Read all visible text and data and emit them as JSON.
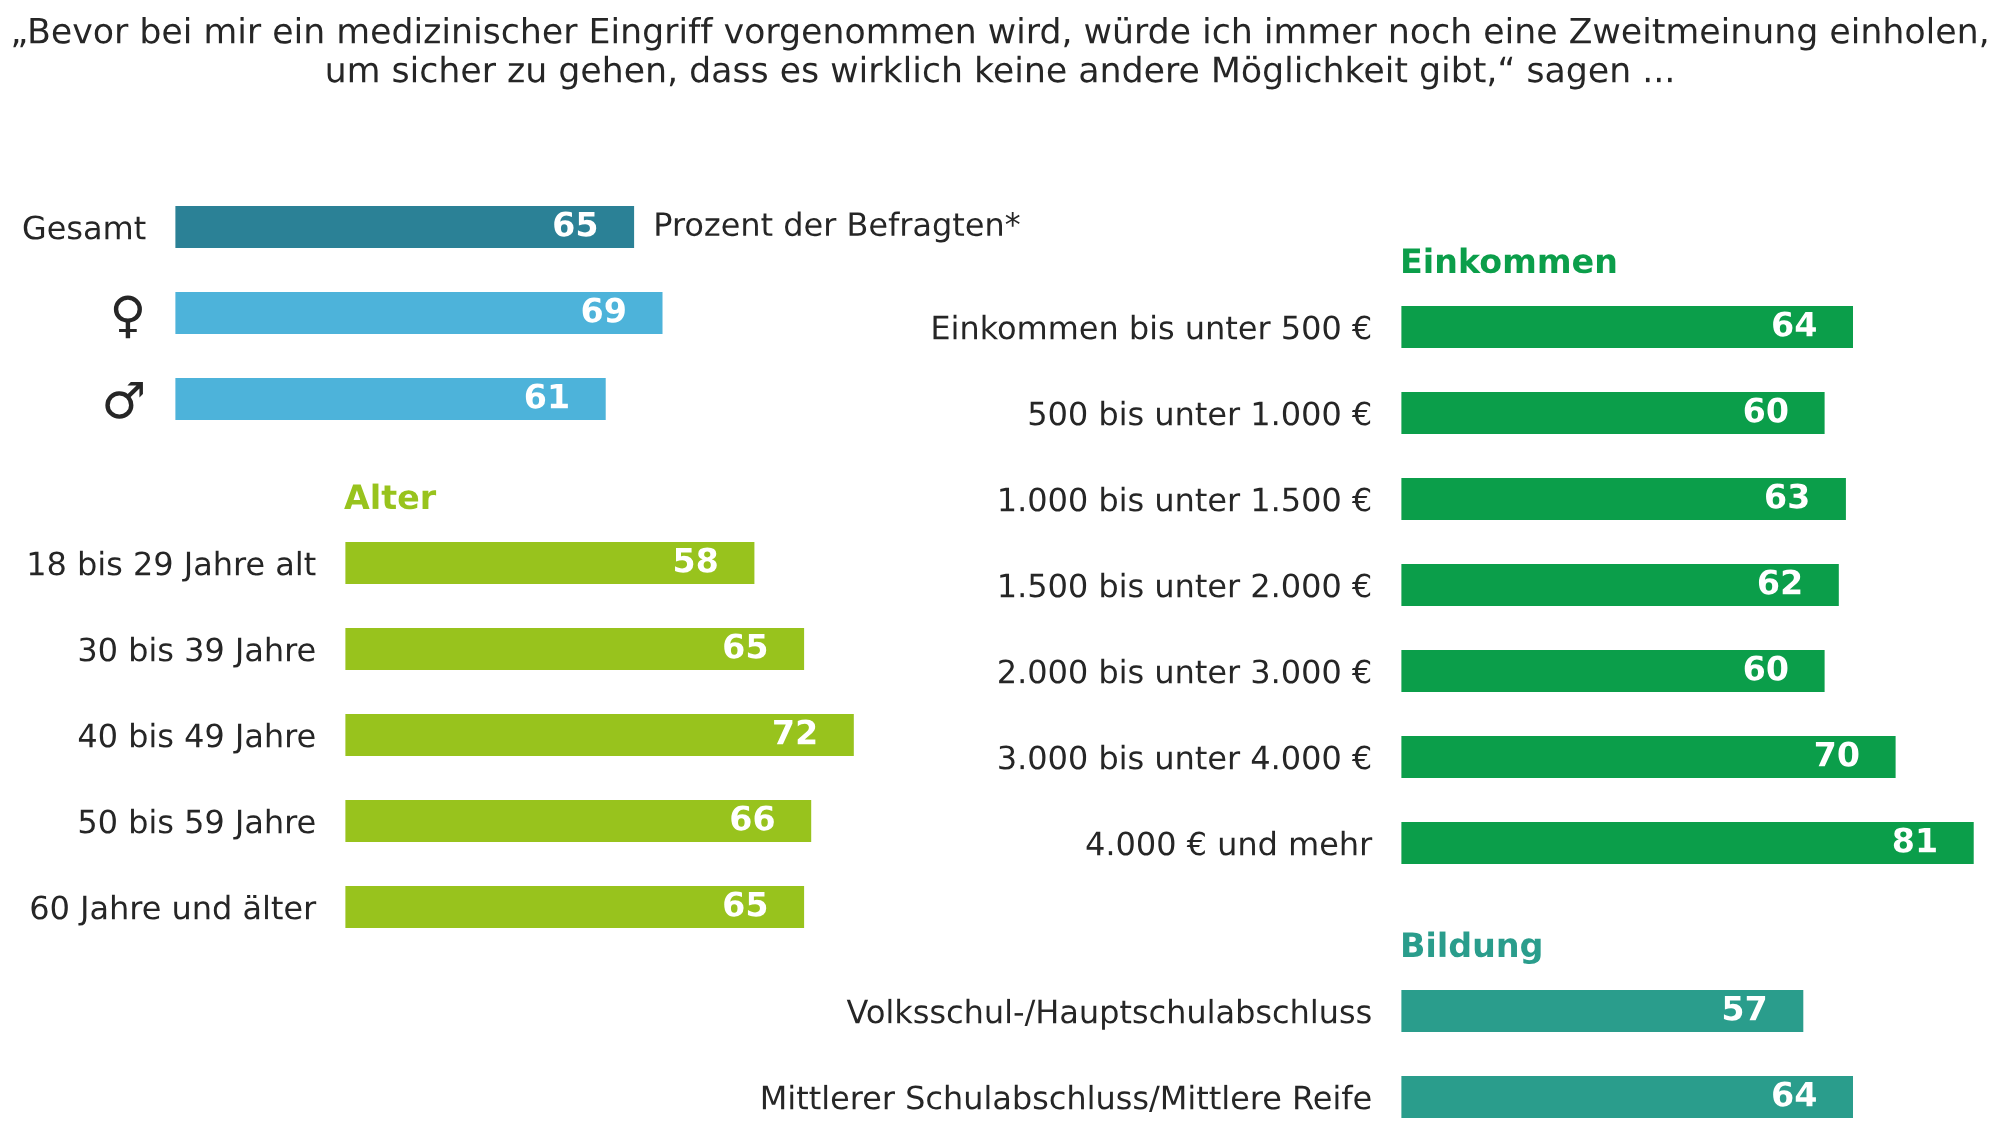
{
  "chart_data": [
    {
      "type": "bar",
      "orientation": "horizontal",
      "title": "„Bevor bei mir ein medizinischer Eingriff vorgenommen wird, würde ich immer noch eine Zweitmeinung einholen, um sicher zu gehen, dass es wirklich keine andere Möglichkeit gibt,“ sagen ...",
      "categories": [
        "Gesamt",
        "♀",
        "♂"
      ],
      "values": [
        65,
        69,
        61
      ],
      "colors": [
        "#2b8196",
        "#4db3da",
        "#4db3da"
      ],
      "data_labels": true,
      "annotations": [
        "Prozent der Befragten*"
      ]
    },
    {
      "type": "bar",
      "orientation": "horizontal",
      "title": "Alter",
      "categories": [
        "18 bis 29 Jahre alt",
        "30 bis 39 Jahre",
        "40 bis 49 Jahre",
        "50 bis 59 Jahre",
        "60 Jahre und älter"
      ],
      "values": [
        58,
        65,
        72,
        66,
        65
      ],
      "colors": [
        "#98c31d",
        "#98c31d",
        "#98c31d",
        "#98c31d",
        "#98c31d"
      ],
      "data_labels": true
    },
    {
      "type": "bar",
      "orientation": "horizontal",
      "title": "Einkommen",
      "categories": [
        "Einkommen bis unter 500 €",
        "500 bis unter 1.000 €",
        "1.000 bis unter 1.500 €",
        "1.500 bis unter 2.000 €",
        "2.000 bis unter 3.000 €",
        "3.000 bis unter 4.000 €",
        "4.000 € und mehr"
      ],
      "values": [
        64,
        60,
        63,
        62,
        60,
        70,
        81
      ],
      "colors": [
        "#0b9e4a",
        "#0b9e4a",
        "#0b9e4a",
        "#0b9e4a",
        "#0b9e4a",
        "#0b9e4a",
        "#0b9e4a"
      ],
      "data_labels": true
    },
    {
      "type": "bar",
      "orientation": "horizontal",
      "title": "Bildung",
      "categories": [
        "Volksschul-/Hauptschulabschluss",
        "Mittlerer Schulabschluss/Mittlere Reife"
      ],
      "values": [
        57,
        64
      ],
      "colors": [
        "#2a9d8c",
        "#2a9d8c"
      ],
      "data_labels": true
    }
  ]
}
